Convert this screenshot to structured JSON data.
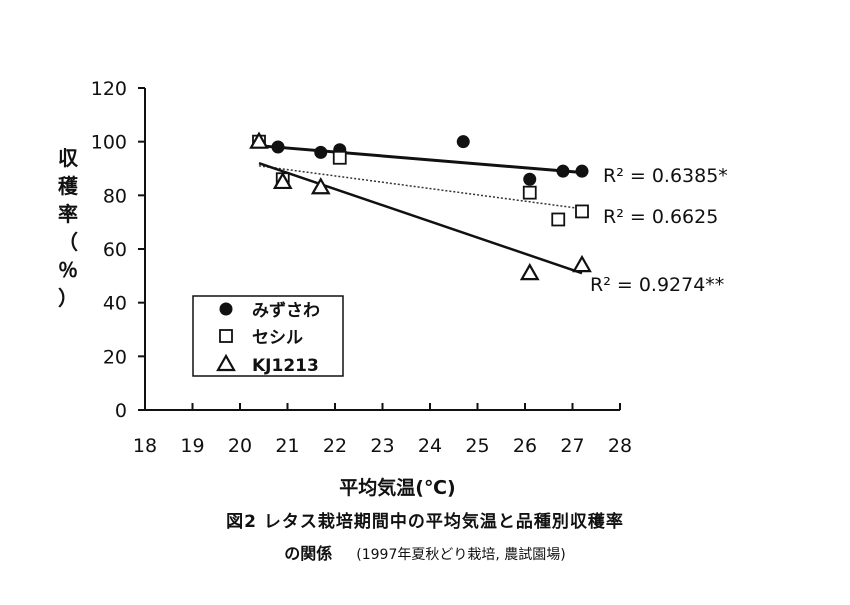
{
  "chart_data": {
    "type": "scatter",
    "xlabel": "平均気温(℃)",
    "ylabel": "収穫率（％）",
    "xlim": [
      18,
      28
    ],
    "ylim": [
      0,
      120
    ],
    "x_ticks": [
      "18",
      "19",
      "20",
      "21",
      "22",
      "23",
      "24",
      "25",
      "26",
      "27",
      "28"
    ],
    "y_ticks": [
      "0",
      "20",
      "40",
      "60",
      "80",
      "100",
      "120"
    ],
    "legend_placement": "lower-left",
    "series": [
      {
        "name": "みずさわ",
        "marker": "filled-circle",
        "points": [
          [
            20.4,
            100
          ],
          [
            20.8,
            98
          ],
          [
            21.7,
            96
          ],
          [
            22.1,
            97
          ],
          [
            24.7,
            100
          ],
          [
            26.1,
            86
          ],
          [
            26.8,
            89
          ],
          [
            27.2,
            89
          ]
        ],
        "trendline": [
          [
            20.4,
            98.5
          ],
          [
            27.2,
            88.5
          ]
        ],
        "r2_label": "R² = 0.6385*"
      },
      {
        "name": "セシル",
        "marker": "open-square",
        "points": [
          [
            20.4,
            100
          ],
          [
            20.9,
            86
          ],
          [
            22.1,
            94
          ],
          [
            26.1,
            81
          ],
          [
            26.7,
            71
          ],
          [
            27.2,
            74
          ]
        ],
        "trendline": [
          [
            20.4,
            91
          ],
          [
            27.2,
            75
          ]
        ],
        "r2_label": "R² = 0.6625"
      },
      {
        "name": "KJ1213",
        "marker": "open-triangle",
        "points": [
          [
            20.4,
            100
          ],
          [
            20.9,
            85
          ],
          [
            21.7,
            83
          ],
          [
            26.1,
            51
          ],
          [
            27.2,
            54
          ]
        ],
        "trendline": [
          [
            20.4,
            92
          ],
          [
            27.2,
            51
          ]
        ],
        "r2_label": "R² = 0.9274**"
      }
    ]
  },
  "caption": {
    "line1": "図2  レタス栽培期間中の平均気温と品種別収穫率",
    "line2_main": "の関係",
    "line2_note": "(1997年夏秋どり栽培, 農試園場)"
  }
}
